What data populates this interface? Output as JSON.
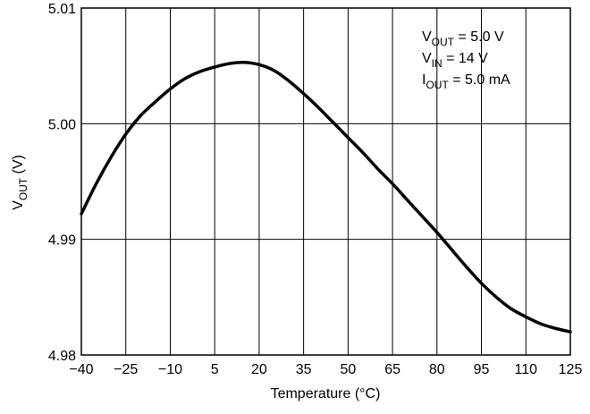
{
  "chart_data": {
    "type": "line",
    "xlabel": "Temperature (°C)",
    "ylabel": {
      "main": "V",
      "sub": "OUT",
      "tail": " (V)"
    },
    "xlim": [
      -40,
      125
    ],
    "ylim": [
      4.98,
      5.01
    ],
    "x_ticks": [
      -40,
      -25,
      -10,
      5,
      20,
      35,
      50,
      65,
      80,
      95,
      110,
      125
    ],
    "x_tick_labels": [
      "−40",
      "−25",
      "−10",
      "5",
      "20",
      "35",
      "50",
      "65",
      "80",
      "95",
      "110",
      "125"
    ],
    "y_ticks": [
      4.98,
      4.99,
      5.0,
      5.01
    ],
    "y_tick_labels": [
      "4.98",
      "4.99",
      "5.00",
      "5.01"
    ],
    "grid": true,
    "annotations": [
      {
        "main": "V",
        "sub": "OUT",
        "tail": " = 5.0 V"
      },
      {
        "main": "V",
        "sub": "IN",
        "tail": " = 14 V"
      },
      {
        "main": "I",
        "sub": "OUT",
        "tail": " = 5.0 mA"
      }
    ],
    "series": [
      {
        "x": [
          -40,
          -35,
          -30,
          -25,
          -20,
          -15,
          -10,
          -5,
          0,
          5,
          10,
          15,
          20,
          25,
          30,
          35,
          40,
          45,
          50,
          55,
          60,
          65,
          70,
          75,
          80,
          85,
          90,
          95,
          100,
          105,
          110,
          115,
          120,
          125
        ],
        "y": [
          4.9922,
          4.9948,
          4.9971,
          4.9991,
          5.0007,
          5.0019,
          5.003,
          5.0039,
          5.0045,
          5.0049,
          5.0052,
          5.0053,
          5.0051,
          5.0046,
          5.0037,
          5.0026,
          5.0014,
          5.0001,
          4.9988,
          4.9975,
          4.9961,
          4.9948,
          4.9934,
          4.992,
          4.9906,
          4.9891,
          4.9876,
          4.9862,
          4.985,
          4.984,
          4.9833,
          4.9827,
          4.9823,
          4.982
        ]
      }
    ]
  }
}
